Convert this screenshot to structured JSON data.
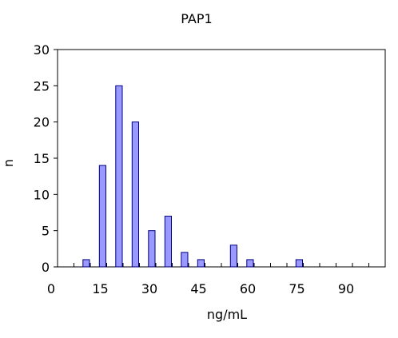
{
  "chart_data": {
    "type": "bar",
    "title": "PAP1",
    "xlabel": "ng/mL",
    "ylabel": "n",
    "x_ticks": [
      "0",
      "15",
      "30",
      "45",
      "60",
      "75",
      "90"
    ],
    "y_ticks": [
      "0",
      "5",
      "10",
      "15",
      "20",
      "25",
      "30"
    ],
    "ylim": [
      0,
      30
    ],
    "xlim": [
      0,
      100
    ],
    "bin_width": 5,
    "categories": [
      5,
      10,
      15,
      20,
      25,
      30,
      35,
      40,
      45,
      50,
      55,
      60,
      65,
      70,
      75,
      80,
      85,
      90,
      95
    ],
    "values": [
      0,
      1,
      14,
      25,
      20,
      5,
      7,
      2,
      1,
      0,
      3,
      1,
      0,
      0,
      1,
      0,
      0,
      0,
      0
    ],
    "grid": false,
    "legend": "none",
    "bar_color": "#9999ff",
    "bar_edge_color": "#000080"
  }
}
